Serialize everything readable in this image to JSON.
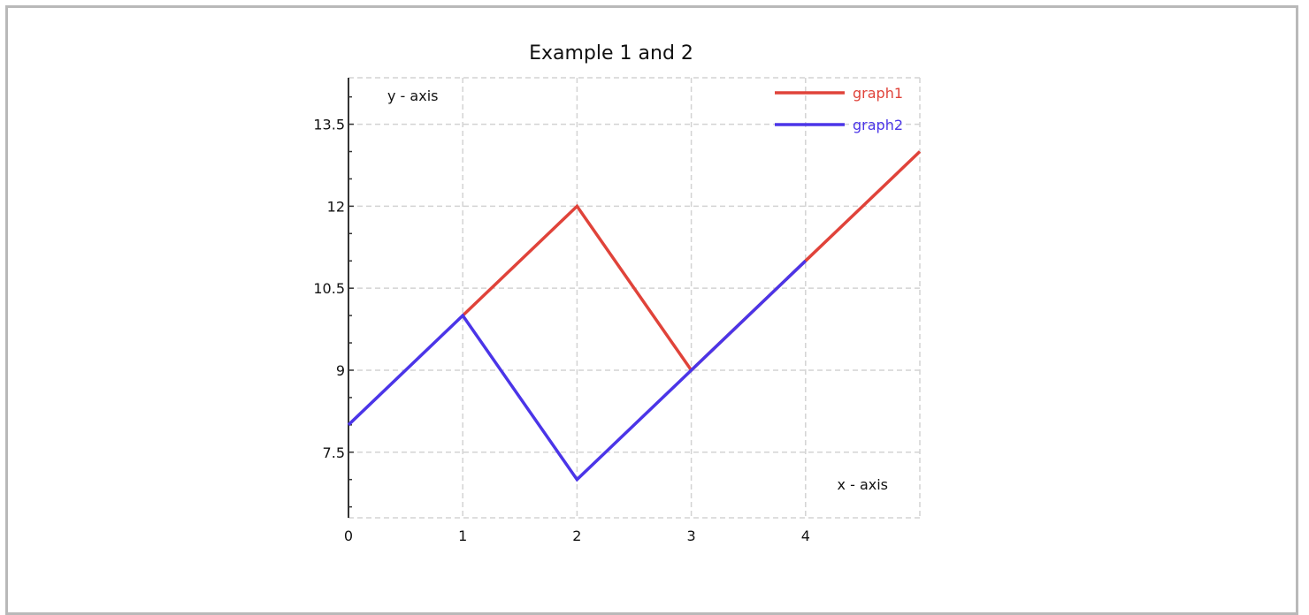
{
  "chart_data": {
    "type": "line",
    "title": "Example 1 and 2",
    "xlabel": "x - axis",
    "ylabel": "y - axis",
    "xlim": [
      0,
      5
    ],
    "ylim": [
      6.3,
      14.35
    ],
    "x_ticks": [
      0,
      1,
      2,
      3,
      4
    ],
    "x_tick_labels": [
      "0",
      "1",
      "2",
      "3",
      "4"
    ],
    "y_ticks": [
      7.5,
      9,
      10.5,
      12,
      13.5
    ],
    "y_tick_labels": [
      "7.5",
      "9",
      "10.5",
      "12",
      "13.5"
    ],
    "grid": true,
    "legend_position": "top-right",
    "series": [
      {
        "name": "graph1",
        "color": "#e0433a",
        "x": [
          1,
          2,
          3,
          4,
          5
        ],
        "y": [
          10,
          12,
          9,
          11,
          13
        ]
      },
      {
        "name": "graph2",
        "color": "#4b35e8",
        "x": [
          0,
          1,
          2,
          3,
          4
        ],
        "y": [
          8,
          10,
          7,
          9,
          11
        ]
      }
    ]
  }
}
